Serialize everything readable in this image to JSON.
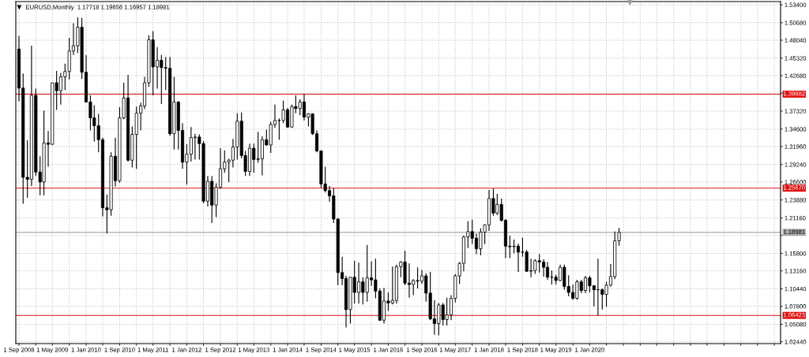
{
  "chart_data": {
    "type": "candlestick",
    "title": "EURUSD,Monthly  1.17718 1.19656 1.16957 1.18981",
    "x": [
      "2008-09",
      "2008-10",
      "2008-11",
      "2008-12",
      "2009-01",
      "2009-02",
      "2009-03",
      "2009-04",
      "2009-05",
      "2009-06",
      "2009-07",
      "2009-08",
      "2009-09",
      "2009-10",
      "2009-11",
      "2009-12",
      "2010-01",
      "2010-02",
      "2010-03",
      "2010-04",
      "2010-05",
      "2010-06",
      "2010-07",
      "2010-08",
      "2010-09",
      "2010-10",
      "2010-11",
      "2010-12",
      "2011-01",
      "2011-02",
      "2011-03",
      "2011-04",
      "2011-05",
      "2011-06",
      "2011-07",
      "2011-08",
      "2011-09",
      "2011-10",
      "2011-11",
      "2011-12",
      "2012-01",
      "2012-02",
      "2012-03",
      "2012-04",
      "2012-05",
      "2012-06",
      "2012-07",
      "2012-08",
      "2012-09",
      "2012-10",
      "2012-11",
      "2012-12",
      "2013-01",
      "2013-02",
      "2013-03",
      "2013-04",
      "2013-05",
      "2013-06",
      "2013-07",
      "2013-08",
      "2013-09",
      "2013-10",
      "2013-11",
      "2013-12",
      "2014-01",
      "2014-02",
      "2014-03",
      "2014-04",
      "2014-05",
      "2014-06",
      "2014-07",
      "2014-08",
      "2014-09",
      "2014-10",
      "2014-11",
      "2014-12",
      "2015-01",
      "2015-02",
      "2015-03",
      "2015-04",
      "2015-05",
      "2015-06",
      "2015-07",
      "2015-08",
      "2015-09",
      "2015-10",
      "2015-11",
      "2015-12",
      "2016-01",
      "2016-02",
      "2016-03",
      "2016-04",
      "2016-05",
      "2016-06",
      "2016-07",
      "2016-08",
      "2016-09",
      "2016-10",
      "2016-11",
      "2016-12",
      "2017-01",
      "2017-02",
      "2017-03",
      "2017-04",
      "2017-05",
      "2017-06",
      "2017-07",
      "2017-08",
      "2017-09",
      "2017-10",
      "2017-11",
      "2017-12",
      "2018-01",
      "2018-02",
      "2018-03",
      "2018-04",
      "2018-05",
      "2018-06",
      "2018-07",
      "2018-08",
      "2018-09",
      "2018-10",
      "2018-11",
      "2018-12",
      "2019-01",
      "2019-02",
      "2019-03",
      "2019-04",
      "2019-05",
      "2019-06",
      "2019-07",
      "2019-08",
      "2019-09",
      "2019-10",
      "2019-11",
      "2019-12",
      "2020-01",
      "2020-02",
      "2020-03",
      "2020-04",
      "2020-05",
      "2020-06",
      "2020-07",
      "2020-08"
    ],
    "ohlc": [
      [
        1.467,
        1.487,
        1.388,
        1.408
      ],
      [
        1.408,
        1.43,
        1.233,
        1.273
      ],
      [
        1.273,
        1.329,
        1.242,
        1.27
      ],
      [
        1.27,
        1.472,
        1.26,
        1.397
      ],
      [
        1.397,
        1.407,
        1.275,
        1.281
      ],
      [
        1.281,
        1.305,
        1.246,
        1.266
      ],
      [
        1.266,
        1.374,
        1.246,
        1.325
      ],
      [
        1.325,
        1.343,
        1.289,
        1.323
      ],
      [
        1.323,
        1.416,
        1.322,
        1.416
      ],
      [
        1.416,
        1.434,
        1.375,
        1.404
      ],
      [
        1.404,
        1.431,
        1.383,
        1.425
      ],
      [
        1.425,
        1.445,
        1.405,
        1.433
      ],
      [
        1.433,
        1.484,
        1.421,
        1.464
      ],
      [
        1.464,
        1.506,
        1.458,
        1.472
      ],
      [
        1.472,
        1.515,
        1.461,
        1.5
      ],
      [
        1.5,
        1.514,
        1.422,
        1.432
      ],
      [
        1.432,
        1.458,
        1.386,
        1.387
      ],
      [
        1.387,
        1.397,
        1.344,
        1.363
      ],
      [
        1.363,
        1.382,
        1.327,
        1.351
      ],
      [
        1.351,
        1.369,
        1.311,
        1.33
      ],
      [
        1.33,
        1.333,
        1.214,
        1.227
      ],
      [
        1.227,
        1.247,
        1.188,
        1.224
      ],
      [
        1.224,
        1.311,
        1.215,
        1.305
      ],
      [
        1.305,
        1.333,
        1.259,
        1.268
      ],
      [
        1.268,
        1.379,
        1.265,
        1.363
      ],
      [
        1.363,
        1.416,
        1.361,
        1.393
      ],
      [
        1.393,
        1.428,
        1.297,
        1.299
      ],
      [
        1.299,
        1.35,
        1.288,
        1.338
      ],
      [
        1.338,
        1.38,
        1.286,
        1.37
      ],
      [
        1.37,
        1.386,
        1.344,
        1.381
      ],
      [
        1.381,
        1.425,
        1.376,
        1.416
      ],
      [
        1.416,
        1.488,
        1.41,
        1.481
      ],
      [
        1.481,
        1.494,
        1.397,
        1.44
      ],
      [
        1.44,
        1.47,
        1.407,
        1.45
      ],
      [
        1.45,
        1.458,
        1.384,
        1.439
      ],
      [
        1.439,
        1.455,
        1.405,
        1.438
      ],
      [
        1.438,
        1.455,
        1.336,
        1.339
      ],
      [
        1.339,
        1.425,
        1.315,
        1.387
      ],
      [
        1.387,
        1.388,
        1.315,
        1.344
      ],
      [
        1.344,
        1.355,
        1.286,
        1.296
      ],
      [
        1.296,
        1.323,
        1.262,
        1.308
      ],
      [
        1.308,
        1.349,
        1.297,
        1.333
      ],
      [
        1.333,
        1.339,
        1.3,
        1.334
      ],
      [
        1.334,
        1.338,
        1.3,
        1.324
      ],
      [
        1.324,
        1.328,
        1.234,
        1.237
      ],
      [
        1.237,
        1.275,
        1.229,
        1.267
      ],
      [
        1.267,
        1.275,
        1.204,
        1.231
      ],
      [
        1.231,
        1.264,
        1.213,
        1.258
      ],
      [
        1.258,
        1.317,
        1.256,
        1.286
      ],
      [
        1.286,
        1.314,
        1.28,
        1.296
      ],
      [
        1.296,
        1.301,
        1.266,
        1.299
      ],
      [
        1.299,
        1.331,
        1.288,
        1.319
      ],
      [
        1.319,
        1.37,
        1.3,
        1.358
      ],
      [
        1.358,
        1.371,
        1.302,
        1.306
      ],
      [
        1.306,
        1.313,
        1.275,
        1.282
      ],
      [
        1.282,
        1.324,
        1.275,
        1.317
      ],
      [
        1.317,
        1.324,
        1.28,
        1.3
      ],
      [
        1.3,
        1.342,
        1.295,
        1.301
      ],
      [
        1.301,
        1.335,
        1.276,
        1.33
      ],
      [
        1.33,
        1.345,
        1.321,
        1.322
      ],
      [
        1.322,
        1.357,
        1.31,
        1.353
      ],
      [
        1.353,
        1.383,
        1.348,
        1.359
      ],
      [
        1.359,
        1.362,
        1.33,
        1.359
      ],
      [
        1.359,
        1.389,
        1.355,
        1.375
      ],
      [
        1.375,
        1.378,
        1.348,
        1.349
      ],
      [
        1.349,
        1.383,
        1.348,
        1.38
      ],
      [
        1.38,
        1.397,
        1.37,
        1.377
      ],
      [
        1.377,
        1.391,
        1.367,
        1.387
      ],
      [
        1.387,
        1.399,
        1.359,
        1.364
      ],
      [
        1.364,
        1.37,
        1.35,
        1.369
      ],
      [
        1.369,
        1.37,
        1.337,
        1.339
      ],
      [
        1.339,
        1.344,
        1.311,
        1.313
      ],
      [
        1.313,
        1.314,
        1.257,
        1.263
      ],
      [
        1.263,
        1.289,
        1.25,
        1.253
      ],
      [
        1.253,
        1.26,
        1.236,
        1.245
      ],
      [
        1.245,
        1.257,
        1.204,
        1.21
      ],
      [
        1.21,
        1.211,
        1.11,
        1.129
      ],
      [
        1.129,
        1.153,
        1.11,
        1.12
      ],
      [
        1.12,
        1.124,
        1.046,
        1.073
      ],
      [
        1.073,
        1.122,
        1.052,
        1.122
      ],
      [
        1.122,
        1.147,
        1.082,
        1.099
      ],
      [
        1.099,
        1.144,
        1.082,
        1.115
      ],
      [
        1.115,
        1.122,
        1.081,
        1.099
      ],
      [
        1.099,
        1.171,
        1.085,
        1.121
      ],
      [
        1.121,
        1.146,
        1.109,
        1.118
      ],
      [
        1.118,
        1.15,
        1.09,
        1.101
      ],
      [
        1.101,
        1.105,
        1.056,
        1.057
      ],
      [
        1.057,
        1.106,
        1.052,
        1.086
      ],
      [
        1.086,
        1.099,
        1.071,
        1.083
      ],
      [
        1.083,
        1.138,
        1.081,
        1.087
      ],
      [
        1.087,
        1.141,
        1.082,
        1.138
      ],
      [
        1.138,
        1.146,
        1.122,
        1.145
      ],
      [
        1.145,
        1.162,
        1.11,
        1.113
      ],
      [
        1.113,
        1.143,
        1.091,
        1.111
      ],
      [
        1.111,
        1.119,
        1.095,
        1.117
      ],
      [
        1.117,
        1.137,
        1.105,
        1.116
      ],
      [
        1.116,
        1.133,
        1.112,
        1.124
      ],
      [
        1.124,
        1.128,
        1.085,
        1.098
      ],
      [
        1.098,
        1.13,
        1.057,
        1.059
      ],
      [
        1.059,
        1.087,
        1.035,
        1.052
      ],
      [
        1.052,
        1.083,
        1.034,
        1.08
      ],
      [
        1.08,
        1.083,
        1.049,
        1.058
      ],
      [
        1.058,
        1.091,
        1.049,
        1.065
      ],
      [
        1.065,
        1.095,
        1.057,
        1.09
      ],
      [
        1.09,
        1.127,
        1.084,
        1.124
      ],
      [
        1.124,
        1.145,
        1.112,
        1.143
      ],
      [
        1.143,
        1.185,
        1.131,
        1.183
      ],
      [
        1.183,
        1.207,
        1.166,
        1.191
      ],
      [
        1.191,
        1.209,
        1.172,
        1.181
      ],
      [
        1.181,
        1.188,
        1.157,
        1.165
      ],
      [
        1.165,
        1.196,
        1.155,
        1.19
      ],
      [
        1.19,
        1.202,
        1.172,
        1.201
      ],
      [
        1.201,
        1.254,
        1.192,
        1.241
      ],
      [
        1.241,
        1.256,
        1.215,
        1.219
      ],
      [
        1.219,
        1.248,
        1.216,
        1.232
      ],
      [
        1.232,
        1.241,
        1.206,
        1.208
      ],
      [
        1.208,
        1.21,
        1.151,
        1.169
      ],
      [
        1.169,
        1.185,
        1.151,
        1.168
      ],
      [
        1.168,
        1.179,
        1.158,
        1.169
      ],
      [
        1.169,
        1.173,
        1.13,
        1.16
      ],
      [
        1.16,
        1.182,
        1.153,
        1.16
      ],
      [
        1.16,
        1.163,
        1.13,
        1.131
      ],
      [
        1.131,
        1.15,
        1.122,
        1.132
      ],
      [
        1.132,
        1.149,
        1.127,
        1.147
      ],
      [
        1.147,
        1.157,
        1.129,
        1.145
      ],
      [
        1.145,
        1.149,
        1.123,
        1.137
      ],
      [
        1.137,
        1.145,
        1.118,
        1.122
      ],
      [
        1.122,
        1.132,
        1.111,
        1.122
      ],
      [
        1.122,
        1.126,
        1.111,
        1.117
      ],
      [
        1.117,
        1.141,
        1.116,
        1.137
      ],
      [
        1.137,
        1.141,
        1.103,
        1.108
      ],
      [
        1.108,
        1.125,
        1.093,
        1.099
      ],
      [
        1.099,
        1.111,
        1.088,
        1.09
      ],
      [
        1.09,
        1.118,
        1.088,
        1.115
      ],
      [
        1.115,
        1.118,
        1.098,
        1.102
      ],
      [
        1.102,
        1.124,
        1.098,
        1.121
      ],
      [
        1.121,
        1.124,
        1.099,
        1.109
      ],
      [
        1.109,
        1.11,
        1.078,
        1.103
      ],
      [
        1.103,
        1.15,
        1.064,
        1.103
      ],
      [
        1.103,
        1.105,
        1.073,
        1.096
      ],
      [
        1.096,
        1.115,
        1.077,
        1.11
      ],
      [
        1.11,
        1.142,
        1.108,
        1.123
      ],
      [
        1.123,
        1.191,
        1.119,
        1.177
      ],
      [
        1.17718,
        1.19656,
        1.16957,
        1.18981
      ]
    ],
    "xlim": [
      "2008-08-09",
      "2023-10-16"
    ],
    "xticks": [
      {
        "value": "2008-09",
        "label": "1 Sep 2008"
      },
      {
        "value": "2009-01",
        "label": null
      },
      {
        "value": "2009-05",
        "label": "1 May 2009"
      },
      {
        "value": "2009-09",
        "label": null
      },
      {
        "value": "2010-01",
        "label": "1 Jan 2010"
      },
      {
        "value": "2010-05",
        "label": null
      },
      {
        "value": "2010-09",
        "label": "1 Sep 2010"
      },
      {
        "value": "2011-01",
        "label": null
      },
      {
        "value": "2011-05",
        "label": "1 May 2011"
      },
      {
        "value": "2011-09",
        "label": null
      },
      {
        "value": "2012-01",
        "label": "1 Jan 2012"
      },
      {
        "value": "2012-05",
        "label": null
      },
      {
        "value": "2012-09",
        "label": "1 Sep 2012"
      },
      {
        "value": "2013-01",
        "label": null
      },
      {
        "value": "2013-05",
        "label": "1 May 2013"
      },
      {
        "value": "2013-09",
        "label": null
      },
      {
        "value": "2014-01",
        "label": "1 Jan 2014"
      },
      {
        "value": "2014-05",
        "label": null
      },
      {
        "value": "2014-09",
        "label": "1 Sep 2014"
      },
      {
        "value": "2015-01",
        "label": null
      },
      {
        "value": "2015-05",
        "label": "1 May 2015"
      },
      {
        "value": "2015-09",
        "label": null
      },
      {
        "value": "2016-01",
        "label": "1 Jan 2016"
      },
      {
        "value": "2016-05",
        "label": null
      },
      {
        "value": "2016-09",
        "label": "1 Sep 2016"
      },
      {
        "value": "2017-01",
        "label": null
      },
      {
        "value": "2017-05",
        "label": "1 May 2017"
      },
      {
        "value": "2017-09",
        "label": null
      },
      {
        "value": "2018-01",
        "label": "1 Jan 2018"
      },
      {
        "value": "2018-05",
        "label": null
      },
      {
        "value": "2018-09",
        "label": "1 Sep 2018"
      },
      {
        "value": "2019-01",
        "label": null
      },
      {
        "value": "2019-05",
        "label": "1 May 2019"
      },
      {
        "value": "2019-09",
        "label": null
      },
      {
        "value": "2020-01",
        "label": "1 Jan 2020"
      },
      {
        "value": "2020-05",
        "label": null
      },
      {
        "value": "2020-09",
        "label": null
      },
      {
        "value": "2021-01",
        "label": null
      },
      {
        "value": "2021-05",
        "label": null
      },
      {
        "value": "2021-09",
        "label": null
      },
      {
        "value": "2022-01",
        "label": null
      },
      {
        "value": "2022-05",
        "label": null
      },
      {
        "value": "2022-09",
        "label": null
      },
      {
        "value": "2023-01",
        "label": null
      },
      {
        "value": "2023-05",
        "label": null
      },
      {
        "value": "2023-09",
        "label": null
      }
    ],
    "ylim": [
      1.0216,
      1.5388
    ],
    "yticks": [
      {
        "value": 1.0244,
        "label": "1.02440"
      },
      {
        "value": 1.0508,
        "label": "1.05080"
      },
      {
        "value": 1.078,
        "label": "1.07800"
      },
      {
        "value": 1.1044,
        "label": "1.10440"
      },
      {
        "value": 1.1316,
        "label": "1.13160"
      },
      {
        "value": 1.158,
        "label": "1.15800"
      },
      {
        "value": 1.1852,
        "label": null
      },
      {
        "value": 1.2116,
        "label": "1.21160"
      },
      {
        "value": 1.2388,
        "label": "1.23880"
      },
      {
        "value": 1.266,
        "label": "1.26600"
      },
      {
        "value": 1.2924,
        "label": "1.29240"
      },
      {
        "value": 1.3196,
        "label": "1.31960"
      },
      {
        "value": 1.346,
        "label": "1.34600"
      },
      {
        "value": 1.3732,
        "label": "1.37320"
      },
      {
        "value": 1.4004,
        "label": null
      },
      {
        "value": 1.4268,
        "label": "1.42680"
      },
      {
        "value": 1.4532,
        "label": "1.45320"
      },
      {
        "value": 1.4804,
        "label": "1.48040"
      },
      {
        "value": 1.5068,
        "label": "1.50680"
      },
      {
        "value": 1.534,
        "label": "1.53400"
      }
    ],
    "ref_lines": [
      {
        "axis": "y",
        "value": 1.39882,
        "label": "1.39882",
        "color": "#e01010"
      },
      {
        "axis": "y",
        "value": 1.2567,
        "label": "1.25670",
        "color": "#e01010"
      },
      {
        "axis": "y",
        "value": 1.06423,
        "label": "1.06423",
        "color": "#e01010"
      },
      {
        "axis": "y",
        "value": 1.18981,
        "label": "1.18981",
        "color": "#a8a8a8"
      }
    ],
    "grid": true
  }
}
